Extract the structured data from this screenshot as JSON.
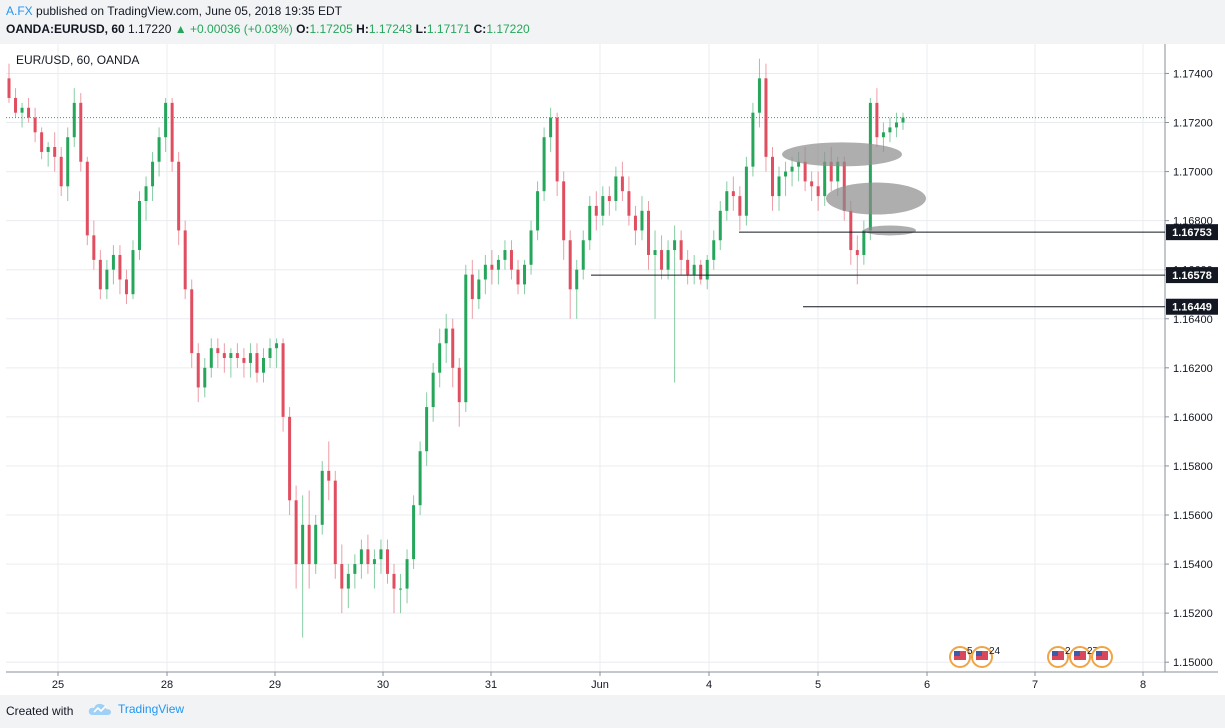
{
  "header": {
    "author": "A.FX",
    "published_text": "published on TradingView.com, June 05, 2018 19:35 EDT"
  },
  "ohlc": {
    "symbol": "OANDA:EURUSD, 60",
    "last": "1.17220",
    "change": "+0.00036 (+0.03%)",
    "o_label": "O:",
    "o": "1.17205",
    "h_label": "H:",
    "h": "1.17243",
    "l_label": "L:",
    "l": "1.17171",
    "c_label": "C:",
    "c": "1.17220"
  },
  "footer": {
    "created_with": "Created with",
    "brand": "TradingView"
  },
  "colors": {
    "up": "#26a65b",
    "down": "#e04e5f",
    "grid": "#e9ecef",
    "axis_text": "#131722",
    "last_price_line": "#26a65b",
    "ellipse": "#8c8c8c"
  },
  "chart_data": {
    "type": "candlestick",
    "title": "EUR/USD, 60, OANDA",
    "x_labels": [
      "25",
      "28",
      "29",
      "30",
      "31",
      "Jun",
      "4",
      "5",
      "6",
      "7",
      "8"
    ],
    "y_ticks": [
      "1.17400",
      "1.17200",
      "1.17000",
      "1.16800",
      "1.16600",
      "1.16400",
      "1.16200",
      "1.16000",
      "1.15800",
      "1.15600",
      "1.15400",
      "1.15200",
      "1.15000"
    ],
    "y_range": [
      1.1496,
      1.1752
    ],
    "grid": true,
    "last_price": 1.1722,
    "candles": [
      [
        1.1738,
        1.1744,
        1.1728,
        1.173
      ],
      [
        1.173,
        1.1734,
        1.1722,
        1.1724
      ],
      [
        1.1724,
        1.1728,
        1.1718,
        1.1726
      ],
      [
        1.1726,
        1.173,
        1.172,
        1.1722
      ],
      [
        1.1722,
        1.1726,
        1.1712,
        1.1716
      ],
      [
        1.1716,
        1.1718,
        1.1705,
        1.1708
      ],
      [
        1.1708,
        1.1712,
        1.1702,
        1.171
      ],
      [
        1.171,
        1.1716,
        1.17,
        1.1706
      ],
      [
        1.1706,
        1.171,
        1.169,
        1.1694
      ],
      [
        1.1694,
        1.1718,
        1.1688,
        1.1714
      ],
      [
        1.1714,
        1.1734,
        1.171,
        1.1728
      ],
      [
        1.1728,
        1.1732,
        1.17,
        1.1704
      ],
      [
        1.1704,
        1.1706,
        1.167,
        1.1674
      ],
      [
        1.1674,
        1.168,
        1.166,
        1.1664
      ],
      [
        1.1664,
        1.1668,
        1.1648,
        1.1652
      ],
      [
        1.1652,
        1.1664,
        1.1648,
        1.166
      ],
      [
        1.166,
        1.167,
        1.1654,
        1.1666
      ],
      [
        1.1666,
        1.167,
        1.165,
        1.1656
      ],
      [
        1.1656,
        1.166,
        1.1646,
        1.165
      ],
      [
        1.165,
        1.1672,
        1.1648,
        1.1668
      ],
      [
        1.1668,
        1.1692,
        1.1664,
        1.1688
      ],
      [
        1.1688,
        1.1698,
        1.168,
        1.1694
      ],
      [
        1.1694,
        1.1708,
        1.1688,
        1.1704
      ],
      [
        1.1704,
        1.1718,
        1.1698,
        1.1714
      ],
      [
        1.1714,
        1.173,
        1.1708,
        1.1728
      ],
      [
        1.1728,
        1.173,
        1.17,
        1.1704
      ],
      [
        1.1704,
        1.1708,
        1.167,
        1.1676
      ],
      [
        1.1676,
        1.168,
        1.1648,
        1.1652
      ],
      [
        1.1652,
        1.1656,
        1.162,
        1.1626
      ],
      [
        1.1626,
        1.163,
        1.1606,
        1.1612
      ],
      [
        1.1612,
        1.1624,
        1.1608,
        1.162
      ],
      [
        1.162,
        1.1632,
        1.1616,
        1.1628
      ],
      [
        1.1628,
        1.1632,
        1.162,
        1.1626
      ],
      [
        1.1626,
        1.163,
        1.1618,
        1.1624
      ],
      [
        1.1624,
        1.1628,
        1.1616,
        1.1626
      ],
      [
        1.1626,
        1.163,
        1.162,
        1.1624
      ],
      [
        1.1624,
        1.1628,
        1.1616,
        1.1622
      ],
      [
        1.1622,
        1.163,
        1.1616,
        1.1626
      ],
      [
        1.1626,
        1.163,
        1.1614,
        1.1618
      ],
      [
        1.1618,
        1.1628,
        1.1614,
        1.1624
      ],
      [
        1.1624,
        1.1632,
        1.162,
        1.1628
      ],
      [
        1.1628,
        1.1632,
        1.162,
        1.163
      ],
      [
        1.163,
        1.1632,
        1.1594,
        1.16
      ],
      [
        1.16,
        1.1604,
        1.156,
        1.1566
      ],
      [
        1.1566,
        1.1572,
        1.153,
        1.154
      ],
      [
        1.154,
        1.1568,
        1.151,
        1.1556
      ],
      [
        1.1556,
        1.157,
        1.153,
        1.154
      ],
      [
        1.154,
        1.156,
        1.1536,
        1.1556
      ],
      [
        1.1556,
        1.1582,
        1.1552,
        1.1578
      ],
      [
        1.1578,
        1.159,
        1.1566,
        1.1574
      ],
      [
        1.1574,
        1.1578,
        1.1534,
        1.154
      ],
      [
        1.154,
        1.1548,
        1.152,
        1.153
      ],
      [
        1.153,
        1.154,
        1.1522,
        1.1536
      ],
      [
        1.1536,
        1.1544,
        1.153,
        1.154
      ],
      [
        1.154,
        1.155,
        1.1534,
        1.1546
      ],
      [
        1.1546,
        1.1552,
        1.1536,
        1.154
      ],
      [
        1.154,
        1.1546,
        1.153,
        1.1542
      ],
      [
        1.1542,
        1.155,
        1.1536,
        1.1546
      ],
      [
        1.1546,
        1.155,
        1.1532,
        1.1536
      ],
      [
        1.1536,
        1.154,
        1.152,
        1.153
      ],
      [
        1.153,
        1.1536,
        1.152,
        1.153
      ],
      [
        1.153,
        1.1546,
        1.1524,
        1.1542
      ],
      [
        1.1542,
        1.1568,
        1.1538,
        1.1564
      ],
      [
        1.1564,
        1.159,
        1.156,
        1.1586
      ],
      [
        1.1586,
        1.161,
        1.158,
        1.1604
      ],
      [
        1.1604,
        1.1622,
        1.1598,
        1.1618
      ],
      [
        1.1618,
        1.1636,
        1.1612,
        1.163
      ],
      [
        1.163,
        1.1642,
        1.1622,
        1.1636
      ],
      [
        1.1636,
        1.164,
        1.1612,
        1.162
      ],
      [
        1.162,
        1.1624,
        1.1596,
        1.1606
      ],
      [
        1.1606,
        1.1662,
        1.1602,
        1.1658
      ],
      [
        1.1658,
        1.1664,
        1.164,
        1.1648
      ],
      [
        1.1648,
        1.166,
        1.1644,
        1.1656
      ],
      [
        1.1656,
        1.1666,
        1.165,
        1.1662
      ],
      [
        1.1662,
        1.1668,
        1.1654,
        1.166
      ],
      [
        1.166,
        1.1666,
        1.1654,
        1.1664
      ],
      [
        1.1664,
        1.1672,
        1.166,
        1.1668
      ],
      [
        1.1668,
        1.1672,
        1.1656,
        1.166
      ],
      [
        1.166,
        1.1664,
        1.165,
        1.1654
      ],
      [
        1.1654,
        1.1664,
        1.165,
        1.1662
      ],
      [
        1.1662,
        1.168,
        1.1658,
        1.1676
      ],
      [
        1.1676,
        1.1696,
        1.1672,
        1.1692
      ],
      [
        1.1692,
        1.1718,
        1.1688,
        1.1714
      ],
      [
        1.1714,
        1.1726,
        1.1708,
        1.1722
      ],
      [
        1.1722,
        1.1724,
        1.169,
        1.1696
      ],
      [
        1.1696,
        1.17,
        1.1664,
        1.1672
      ],
      [
        1.1672,
        1.1676,
        1.164,
        1.1652
      ],
      [
        1.1652,
        1.1664,
        1.164,
        1.166
      ],
      [
        1.166,
        1.1676,
        1.1656,
        1.1672
      ],
      [
        1.1672,
        1.169,
        1.1668,
        1.1686
      ],
      [
        1.1686,
        1.1692,
        1.1676,
        1.1682
      ],
      [
        1.1682,
        1.1694,
        1.1678,
        1.169
      ],
      [
        1.169,
        1.1694,
        1.1682,
        1.1688
      ],
      [
        1.1688,
        1.1702,
        1.1684,
        1.1698
      ],
      [
        1.1698,
        1.1704,
        1.1688,
        1.1692
      ],
      [
        1.1692,
        1.1698,
        1.1678,
        1.1682
      ],
      [
        1.1682,
        1.1686,
        1.167,
        1.1676
      ],
      [
        1.1676,
        1.169,
        1.1672,
        1.1684
      ],
      [
        1.1684,
        1.1688,
        1.166,
        1.1666
      ],
      [
        1.1666,
        1.1676,
        1.164,
        1.1668
      ],
      [
        1.1668,
        1.1674,
        1.1656,
        1.166
      ],
      [
        1.166,
        1.1672,
        1.1656,
        1.1668
      ],
      [
        1.1668,
        1.1678,
        1.1614,
        1.1672
      ],
      [
        1.1672,
        1.1676,
        1.1658,
        1.1664
      ],
      [
        1.1664,
        1.1668,
        1.1654,
        1.1658
      ],
      [
        1.1658,
        1.1666,
        1.1654,
        1.1662
      ],
      [
        1.1662,
        1.1664,
        1.1654,
        1.1656
      ],
      [
        1.1656,
        1.1666,
        1.1652,
        1.1664
      ],
      [
        1.1664,
        1.1676,
        1.166,
        1.1672
      ],
      [
        1.1672,
        1.1688,
        1.1668,
        1.1684
      ],
      [
        1.1684,
        1.1696,
        1.168,
        1.1692
      ],
      [
        1.1692,
        1.1698,
        1.1684,
        1.169
      ],
      [
        1.169,
        1.1694,
        1.1676,
        1.1682
      ],
      [
        1.1682,
        1.1706,
        1.1678,
        1.1702
      ],
      [
        1.1702,
        1.1728,
        1.1698,
        1.1724
      ],
      [
        1.1724,
        1.1746,
        1.1718,
        1.1738
      ],
      [
        1.1738,
        1.1744,
        1.17,
        1.1706
      ],
      [
        1.1706,
        1.171,
        1.1684,
        1.169
      ],
      [
        1.169,
        1.1702,
        1.1684,
        1.1698
      ],
      [
        1.1698,
        1.1704,
        1.169,
        1.17
      ],
      [
        1.17,
        1.1706,
        1.1694,
        1.1702
      ],
      [
        1.1702,
        1.1708,
        1.1696,
        1.1704
      ],
      [
        1.1704,
        1.171,
        1.1692,
        1.1696
      ],
      [
        1.1696,
        1.17,
        1.1688,
        1.1694
      ],
      [
        1.1694,
        1.17,
        1.1684,
        1.169
      ],
      [
        1.169,
        1.1708,
        1.1686,
        1.1704
      ],
      [
        1.1704,
        1.171,
        1.1692,
        1.1696
      ],
      [
        1.1696,
        1.1706,
        1.169,
        1.1704
      ],
      [
        1.1704,
        1.1706,
        1.168,
        1.1684
      ],
      [
        1.1684,
        1.1688,
        1.1662,
        1.1668
      ],
      [
        1.1668,
        1.1674,
        1.1654,
        1.1666
      ],
      [
        1.1666,
        1.168,
        1.1662,
        1.1676
      ],
      [
        1.1676,
        1.173,
        1.1672,
        1.1728
      ],
      [
        1.1728,
        1.1734,
        1.171,
        1.1714
      ],
      [
        1.1714,
        1.172,
        1.1708,
        1.1716
      ],
      [
        1.1716,
        1.1722,
        1.1712,
        1.1718
      ],
      [
        1.1718,
        1.1724,
        1.1714,
        1.172
      ],
      [
        1.172,
        1.1724,
        1.1717,
        1.1722
      ]
    ],
    "horizontal_lines": [
      {
        "value": 1.16753,
        "label": "1.16753"
      },
      {
        "value": 1.16578,
        "label": "1.16578"
      },
      {
        "value": 1.16449,
        "label": "1.16449"
      }
    ],
    "ellipses": [
      {
        "value": 1.1707
      },
      {
        "value": 1.1689
      },
      {
        "value": 1.1676
      }
    ],
    "event_markers": [
      {
        "text": "5"
      },
      {
        "text": "24"
      },
      {
        "text": "2"
      },
      {
        "text": "27"
      }
    ]
  }
}
